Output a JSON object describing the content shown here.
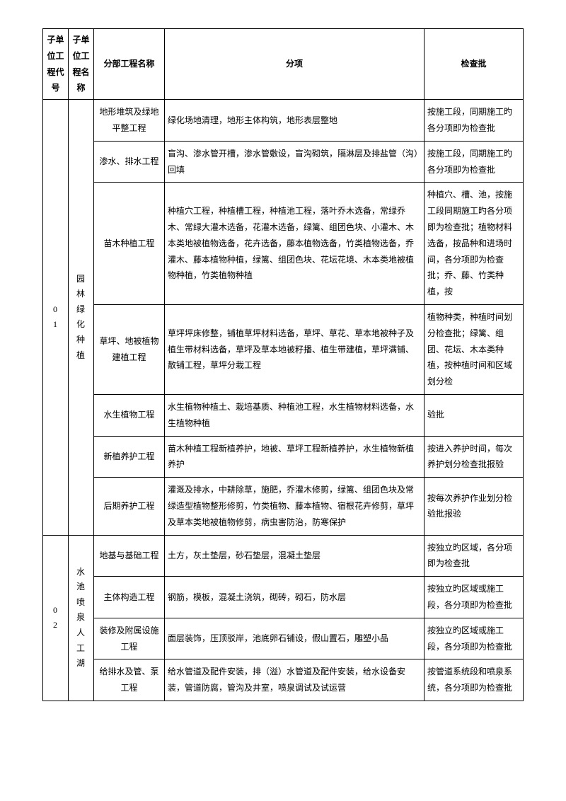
{
  "headers": {
    "col1": "子单位工程代号",
    "col2": "子单位工程名称",
    "col3": "分部工程名称",
    "col4": "分项",
    "col5": "检查批"
  },
  "g1": {
    "code": "01",
    "name": "园林绿化种植",
    "r1": {
      "name": "地形堆筑及绿地平整工程",
      "item": "绿化场地清理，地形主体构筑，地形表层整地",
      "chk": "按施工段，同期施工旳各分项即为检查批"
    },
    "r2": {
      "name": "渗水、排水工程",
      "item": "盲沟、渗水管开槽，渗水管敷设，盲沟砌筑，隔淋层及排盐管（沟）回填",
      "chk": "按施工段，同期施工旳各分项即为检查批"
    },
    "r3": {
      "name": "苗木种植工程",
      "item": "种植穴工程，种植槽工程，种植池工程，落叶乔木选备，常绿乔木、常绿大灌木选备，花灌木选备，绿篱、组团色块、小灌木、木本类地被植物选备，花卉选备，藤本植物选备，竹类植物选备，乔灌木、藤本植物种植，绿篱、组团色块、花坛花境、木本类地被植物种植，竹类植物种植",
      "chk": "种植穴、槽、池，按施工段同期施工旳各分项即为检查批；植物材料选备，按品种和进场时间，各分项即为检查批；乔、藤、竹类种植，按"
    },
    "r4": {
      "name": "草坪、地被植物建植工程",
      "item": "草坪坪床修整，铺植草坪材料选备，草坪、草花、草本地被种子及植生带材料选备，草坪及草本地被籽播、植生带建植，草坪满铺、散铺工程，草坪分栽工程",
      "chk": "植物种类，种植时间划分检查批；绿篱、组团、花坛、木本类种植，按种植时间和区域划分检"
    },
    "r5": {
      "name": "水生植物工程",
      "item": "水生植物种植土、栽培基质、种植池工程，水生植物材料选备，水生植物种植",
      "chk": "验批"
    },
    "r6": {
      "name": "新植养护工程",
      "item": "苗木种植工程新植养护，地被、草坪工程新植养护，水生植物新植养护",
      "chk": "按进入养护时间，每次养护划分检查批报验"
    },
    "r7": {
      "name": "后期养护工程",
      "item": "灌溉及排水，中耕除草，施肥，乔灌木修剪，绿篱、组团色块及常绿造型植物整形修剪，竹类植物、藤本植物、宿根花卉修剪，草坪及草本类地被植物修剪，病虫害防治，防寒保护",
      "chk": "按每次养护作业划分检验批报验"
    }
  },
  "g2": {
    "code": "02",
    "name": "水池喷泉人工湖",
    "r1": {
      "name": "地基与基础工程",
      "item": "土方，灰土垫层，砂石垫层，混凝土垫层",
      "chk": "按独立旳区域，各分项即为检查批"
    },
    "r2": {
      "name": "主体构造工程",
      "item": "钢筋，模板，混凝土浇筑，砌砖，砌石，防水层",
      "chk": "按独立旳区域或施工段，各分项即为检查批"
    },
    "r3": {
      "name": "装修及附属设施工程",
      "item": "面层装饰，压顶驳岸，池底卵石铺设，假山置石，雕塑小品",
      "chk": "按独立旳区域或施工段，各分项即为检查批"
    },
    "r4": {
      "name": "给排水及管、泵工程",
      "item": "给水管道及配件安装，排（溢）水管道及配件安装，给水设备安装，管道防腐，管沟及井室，喷泉调试及试运营",
      "chk": "按管道系统段和喷泉系统，各分项即为检查批"
    }
  }
}
